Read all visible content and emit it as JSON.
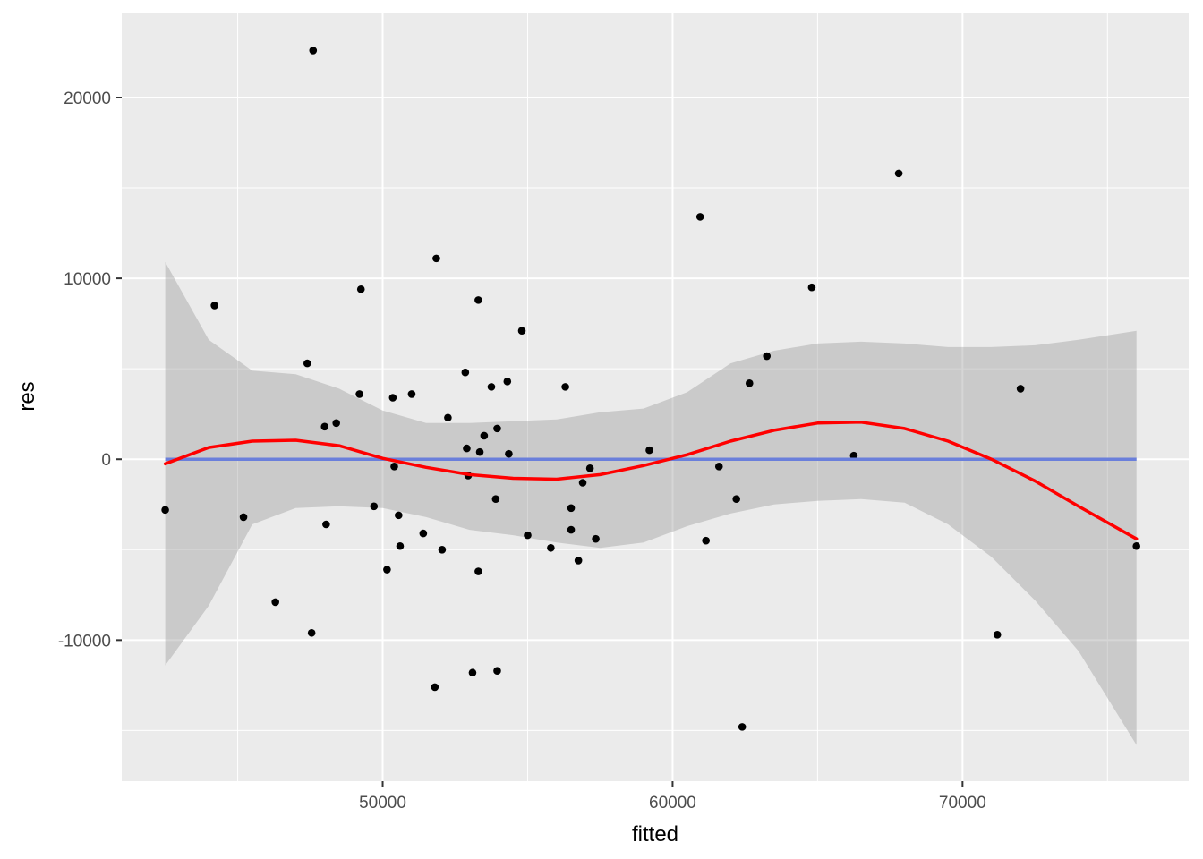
{
  "chart_data": {
    "type": "scatter",
    "xlabel": "fitted",
    "ylabel": "res",
    "xlim": [
      41000,
      77800
    ],
    "ylim": [
      -17800,
      24700
    ],
    "x_ticks": [
      50000,
      60000,
      70000
    ],
    "x_tick_labels": [
      "50000",
      "60000",
      "70000"
    ],
    "x_minor_ticks": [
      45000,
      55000,
      65000,
      75000
    ],
    "y_ticks": [
      -10000,
      0,
      10000,
      20000
    ],
    "y_tick_labels": [
      "-10000",
      "0",
      "10000",
      "20000"
    ],
    "y_minor_ticks": [
      -15000,
      -5000,
      5000,
      15000
    ],
    "grid": true,
    "colors": {
      "panel": "#ebebeb",
      "grid": "#ffffff",
      "points": "#000000",
      "loess_line": "#ff0000",
      "reference_line": "#6a7fdb",
      "confidence_band": "#999999"
    },
    "points": [
      [
        42500,
        -2800
      ],
      [
        44200,
        8500
      ],
      [
        45200,
        -3200
      ],
      [
        46300,
        -7900
      ],
      [
        47400,
        5300
      ],
      [
        47550,
        -9600
      ],
      [
        47600,
        22600
      ],
      [
        48000,
        1800
      ],
      [
        48050,
        -3600
      ],
      [
        48400,
        2000
      ],
      [
        49200,
        3600
      ],
      [
        49250,
        9400
      ],
      [
        49700,
        -2600
      ],
      [
        50150,
        -6100
      ],
      [
        50350,
        3400
      ],
      [
        50400,
        -400
      ],
      [
        50550,
        -3100
      ],
      [
        50600,
        -4800
      ],
      [
        51000,
        3600
      ],
      [
        51400,
        -4100
      ],
      [
        51800,
        -12600
      ],
      [
        51850,
        11100
      ],
      [
        52050,
        -5000
      ],
      [
        52250,
        2300
      ],
      [
        52850,
        4800
      ],
      [
        52900,
        600
      ],
      [
        52950,
        -900
      ],
      [
        53100,
        -11800
      ],
      [
        53300,
        8800
      ],
      [
        53350,
        400
      ],
      [
        53300,
        -6200
      ],
      [
        53500,
        1300
      ],
      [
        53750,
        4000
      ],
      [
        53900,
        -2200
      ],
      [
        53950,
        1700
      ],
      [
        53950,
        -11700
      ],
      [
        54300,
        4300
      ],
      [
        54350,
        300
      ],
      [
        54800,
        7100
      ],
      [
        55000,
        -4200
      ],
      [
        55800,
        -4900
      ],
      [
        56300,
        4000
      ],
      [
        56500,
        -2700
      ],
      [
        56500,
        -3900
      ],
      [
        56750,
        -5600
      ],
      [
        56900,
        -1300
      ],
      [
        57150,
        -500
      ],
      [
        57350,
        -4400
      ],
      [
        59200,
        500
      ],
      [
        60950,
        13400
      ],
      [
        61150,
        -4500
      ],
      [
        61600,
        -400
      ],
      [
        62200,
        -2200
      ],
      [
        62400,
        -14800
      ],
      [
        62650,
        4200
      ],
      [
        63250,
        5700
      ],
      [
        64800,
        9500
      ],
      [
        66250,
        200
      ],
      [
        67800,
        15800
      ],
      [
        71200,
        -9700
      ],
      [
        72000,
        3900
      ],
      [
        76000,
        -4800
      ]
    ],
    "loess_fit": {
      "x": [
        42500,
        44000,
        45500,
        47000,
        48500,
        50000,
        51500,
        53000,
        54500,
        56000,
        57500,
        59000,
        60500,
        62000,
        63500,
        65000,
        66500,
        68000,
        69500,
        71000,
        72500,
        74000,
        76000
      ],
      "y": [
        -250,
        650,
        1000,
        1050,
        750,
        50,
        -450,
        -850,
        -1050,
        -1100,
        -850,
        -350,
        250,
        1000,
        1600,
        2000,
        2050,
        1700,
        1000,
        0,
        -1200,
        -2600,
        -4400
      ],
      "upper": [
        10900,
        6600,
        4900,
        4700,
        3900,
        2700,
        2000,
        2000,
        2100,
        2200,
        2600,
        2800,
        3700,
        5300,
        6000,
        6400,
        6500,
        6400,
        6200,
        6200,
        6300,
        6600,
        7100
      ],
      "lower": [
        -11400,
        -8100,
        -3600,
        -2700,
        -2600,
        -2700,
        -3200,
        -3900,
        -4200,
        -4600,
        -4900,
        -4600,
        -3700,
        -3000,
        -2500,
        -2300,
        -2200,
        -2400,
        -3600,
        -5400,
        -7800,
        -10600,
        -15800
      ]
    },
    "reference_line_y": 0
  }
}
